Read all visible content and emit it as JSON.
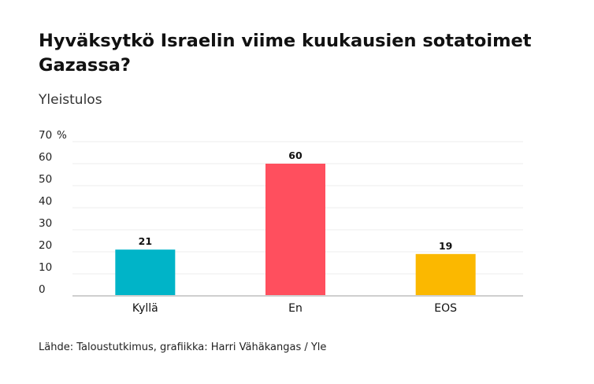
{
  "title": "Hyväksytkö Israelin viime kuukausien sotatoimet Gazassa?",
  "subtitle": "Yleistulos",
  "source": "Lähde: Taloustutkimus, grafiikka: Harri Vähäkangas / Yle",
  "chart_data": {
    "type": "bar",
    "categories": [
      "Kyllä",
      "En",
      "EOS"
    ],
    "values": [
      21,
      60,
      19
    ],
    "colors": [
      "#00b4c8",
      "#ff4f5e",
      "#fbb800"
    ],
    "ylim": [
      0,
      70
    ],
    "yticks": [
      0,
      10,
      20,
      30,
      40,
      50,
      60,
      70
    ],
    "yunit": "%",
    "grid": true
  }
}
